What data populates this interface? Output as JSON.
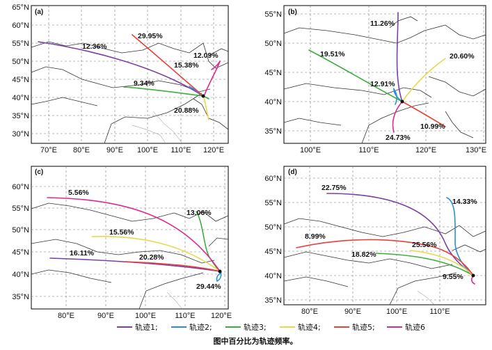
{
  "legend": {
    "items": [
      {
        "label": "轨迹1;",
        "color": "#7b3fa8"
      },
      {
        "label": "轨迹2;",
        "color": "#2b8fd6"
      },
      {
        "label": "轨迹3;",
        "color": "#3cae3c"
      },
      {
        "label": "轨迹4;",
        "color": "#e8d94a"
      },
      {
        "label": "轨迹5;",
        "color": "#e8403a"
      },
      {
        "label": "轨迹6",
        "color": "#e0288f"
      }
    ]
  },
  "caption": "图中百分比为轨迹频率。",
  "panels": [
    {
      "id": "(a)",
      "lon_ticks": [
        "70°E",
        "80°E",
        "90°E",
        "100°E",
        "110°E",
        "120°E"
      ],
      "lat_ticks": [
        "30°N",
        "35°N",
        "40°N",
        "45°N",
        "50°N",
        "55°N",
        "60°N",
        "65°N"
      ],
      "source": "Beijing (~116.5°E, 40°N)",
      "trajectories": [
        {
          "id": 1,
          "frequency": "12.36%",
          "color": "#7b3fa8"
        },
        {
          "id": 2,
          "frequency": "15.38%",
          "color": "#2b8fd6"
        },
        {
          "id": 3,
          "frequency": "9.34%",
          "color": "#3cae3c"
        },
        {
          "id": 4,
          "frequency": "20.88%",
          "color": "#e8d94a"
        },
        {
          "id": 5,
          "frequency": "29.95%",
          "color": "#e8403a"
        },
        {
          "id": 6,
          "frequency": "12.09%",
          "color": "#e0288f"
        }
      ]
    },
    {
      "id": "(b)",
      "lon_ticks": [
        "100°E",
        "110°E",
        "120°E",
        "130°E"
      ],
      "lat_ticks": [
        "35°N",
        "40°N",
        "45°N",
        "50°N",
        "55°N"
      ],
      "trajectories": [
        {
          "id": 1,
          "frequency": "11.26%",
          "color": "#7b3fa8"
        },
        {
          "id": 2,
          "frequency": "12.91%",
          "color": "#2b8fd6"
        },
        {
          "id": 3,
          "frequency": "19.51%",
          "color": "#3cae3c"
        },
        {
          "id": 4,
          "frequency": "20.60%",
          "color": "#e8d94a"
        },
        {
          "id": 5,
          "frequency": "10.99%",
          "color": "#e8403a"
        },
        {
          "id": 6,
          "frequency": "24.73%",
          "color": "#e0288f"
        }
      ]
    },
    {
      "id": "(c)",
      "lon_ticks": [
        "80°E",
        "90°E",
        "100°E",
        "110°E",
        "120°E"
      ],
      "lat_ticks": [
        "35°N",
        "40°N",
        "45°N",
        "50°N",
        "55°N",
        "60°N"
      ],
      "trajectories": [
        {
          "id": 1,
          "frequency": "16.11%",
          "color": "#7b3fa8"
        },
        {
          "id": 2,
          "frequency": "29.44%",
          "color": "#2b8fd6"
        },
        {
          "id": 3,
          "frequency": "13.06%",
          "color": "#3cae3c"
        },
        {
          "id": 4,
          "frequency": "15.56%",
          "color": "#e8d94a"
        },
        {
          "id": 5,
          "frequency": "20.28%",
          "color": "#e8403a"
        },
        {
          "id": 6,
          "frequency": "5.56%",
          "color": "#e0288f"
        }
      ]
    },
    {
      "id": "(d)",
      "lon_ticks": [
        "80°E",
        "90°E",
        "100°E",
        "110°E"
      ],
      "lat_ticks": [
        "35°N",
        "40°N",
        "45°N",
        "50°N",
        "55°N",
        "60°N"
      ],
      "trajectories": [
        {
          "id": 1,
          "frequency": "22.75%",
          "color": "#7b3fa8"
        },
        {
          "id": 2,
          "frequency": "14.33%",
          "color": "#2b8fd6"
        },
        {
          "id": 3,
          "frequency": "18.82%",
          "color": "#3cae3c"
        },
        {
          "id": 4,
          "frequency": "25.56%",
          "color": "#e8d94a"
        },
        {
          "id": 5,
          "frequency": "8.99%",
          "color": "#e8403a"
        },
        {
          "id": 6,
          "frequency": "9.55%",
          "color": "#e0288f"
        }
      ]
    }
  ]
}
